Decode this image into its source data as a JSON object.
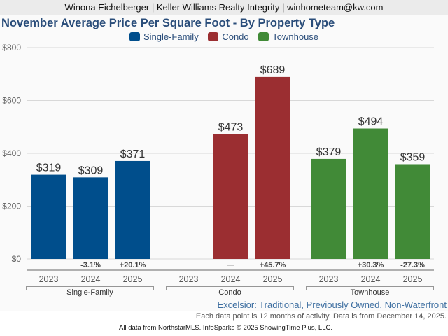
{
  "header": {
    "agent_line": "Winona Eichelberger | Keller Williams Realty Integrity | winhometeam@kw.com"
  },
  "chart_data": {
    "type": "bar",
    "title": "November Average Price Per Square Foot - By Property Type",
    "xlabel": "",
    "ylabel": "",
    "ylim": [
      0,
      800
    ],
    "yticks": [
      0,
      200,
      400,
      600,
      800
    ],
    "ytick_labels": [
      "$0",
      "$200",
      "$400",
      "$600",
      "$800"
    ],
    "grid": true,
    "legend_placement": "top-center",
    "legend": [
      {
        "name": "Single-Family",
        "color": "#004e8c"
      },
      {
        "name": "Condo",
        "color": "#9b2e31"
      },
      {
        "name": "Townhouse",
        "color": "#418a37"
      }
    ],
    "groups": [
      {
        "name": "Single-Family",
        "color": "#004e8c",
        "categories": [
          "2023",
          "2024",
          "2025"
        ],
        "values": [
          319,
          309,
          371
        ],
        "value_labels": [
          "$319",
          "$309",
          "$371"
        ],
        "changes": [
          "",
          "-3.1%",
          "+20.1%"
        ]
      },
      {
        "name": "Condo",
        "color": "#9b2e31",
        "categories": [
          "2023",
          "2024",
          "2025"
        ],
        "values": [
          null,
          473,
          689
        ],
        "value_labels": [
          "",
          "$473",
          "$689"
        ],
        "changes": [
          "",
          "—",
          "+45.7%"
        ]
      },
      {
        "name": "Townhouse",
        "color": "#418a37",
        "categories": [
          "2023",
          "2024",
          "2025"
        ],
        "values": [
          379,
          494,
          359
        ],
        "value_labels": [
          "$379",
          "$494",
          "$359"
        ],
        "changes": [
          "",
          "+30.3%",
          "-27.3%"
        ]
      }
    ]
  },
  "footer": {
    "subtitle": "Excelsior: Traditional, Previously Owned, Non-Waterfront",
    "note": "Each data point is 12 months of activity. Data is from December 14, 2025.",
    "credit": "All data from NorthstarMLS. InfoSparks © 2025 ShowingTime Plus, LLC."
  }
}
